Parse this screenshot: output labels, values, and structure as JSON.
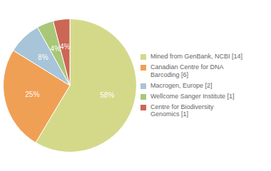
{
  "chart_data": {
    "type": "pie",
    "categories": [
      "Mined from GenBank, NCBI [14]",
      "Canadian Centre for DNA\nBarcoding [6]",
      "Macrogen, Europe [2]",
      "Wellcome Sanger Institute [1]",
      "Centre for Biodiversity\nGenomics [1]"
    ],
    "values": [
      58,
      25,
      8,
      4,
      4
    ],
    "value_labels": [
      "58%",
      "25%",
      "8%",
      "4%",
      "4%"
    ],
    "colors": [
      "#d4d98a",
      "#f0a055",
      "#a8c4d8",
      "#a8c878",
      "#cc6655"
    ],
    "data_labels": true,
    "legend": "right"
  }
}
